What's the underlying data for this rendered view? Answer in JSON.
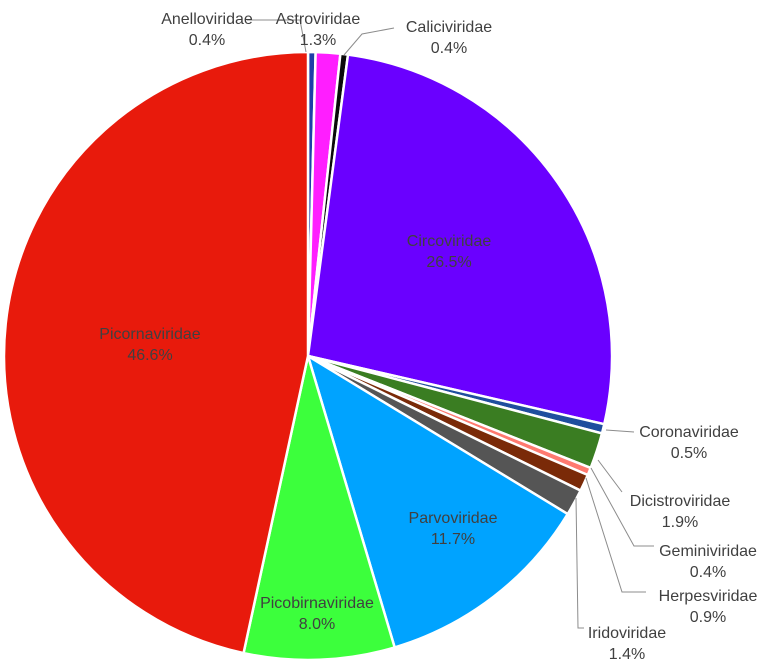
{
  "chart_data": {
    "type": "pie",
    "title": "",
    "slices": [
      {
        "label": "Anelloviridae",
        "value": 0.4,
        "percent_label": "0.4%",
        "color": "#1F3FA8"
      },
      {
        "label": "Astroviridae",
        "value": 1.3,
        "percent_label": "1.3%",
        "color": "#FF1EFF"
      },
      {
        "label": "Caliciviridae",
        "value": 0.4,
        "percent_label": "0.4%",
        "color": "#0A0A0A"
      },
      {
        "label": "Circoviridae",
        "value": 26.5,
        "percent_label": "26.5%",
        "color": "#6A00FF"
      },
      {
        "label": "Coronaviridae",
        "value": 0.5,
        "percent_label": "0.5%",
        "color": "#1F4E9E"
      },
      {
        "label": "Dicistroviridae",
        "value": 1.9,
        "percent_label": "1.9%",
        "color": "#3A7D22"
      },
      {
        "label": "Geminiviridae",
        "value": 0.4,
        "percent_label": "0.4%",
        "color": "#FF7A70"
      },
      {
        "label": "Herpesviridae",
        "value": 0.9,
        "percent_label": "0.9%",
        "color": "#7A2A08"
      },
      {
        "label": "Iridoviridae",
        "value": 1.4,
        "percent_label": "1.4%",
        "color": "#555555"
      },
      {
        "label": "Parvoviridae",
        "value": 11.7,
        "percent_label": "11.7%",
        "color": "#00A3FF"
      },
      {
        "label": "Picobirnaviridae",
        "value": 8.0,
        "percent_label": "8.0%",
        "color": "#3CFF3C"
      },
      {
        "label": "Picornaviridae",
        "value": 46.6,
        "percent_label": "46.6%",
        "color": "#E81A0C"
      }
    ],
    "legend": "none"
  }
}
